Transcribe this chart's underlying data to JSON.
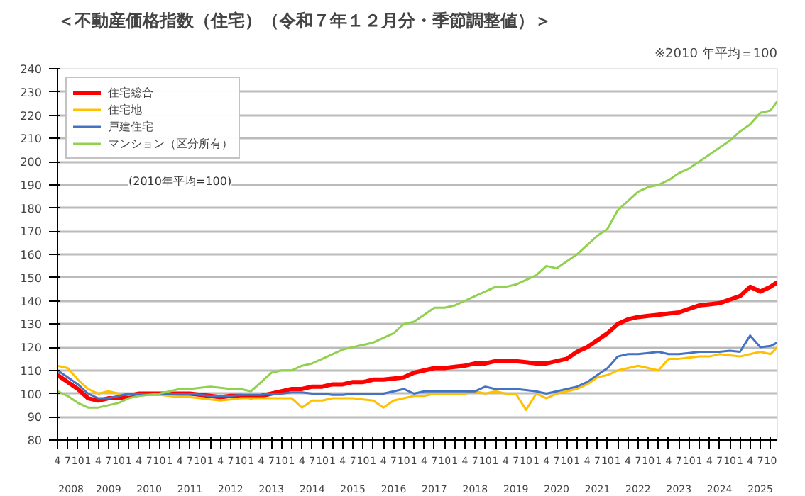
{
  "chart_data": {
    "type": "line",
    "title": "＜不動産価格指数（住宅）（令和７年１２月分・季節調整値）＞",
    "subtitle": "※2010 年平均＝100",
    "annotations": [
      "(2010年平均=100)"
    ],
    "x": [
      "2008-04",
      "2008-07",
      "2008-10",
      "2009-01",
      "2009-04",
      "2009-07",
      "2009-10",
      "2010-01",
      "2010-04",
      "2010-07",
      "2010-10",
      "2011-01",
      "2011-04",
      "2011-07",
      "2011-10",
      "2012-01",
      "2012-04",
      "2012-07",
      "2012-10",
      "2013-01",
      "2013-04",
      "2013-07",
      "2013-10",
      "2014-01",
      "2014-04",
      "2014-07",
      "2014-10",
      "2015-01",
      "2015-04",
      "2015-07",
      "2015-10",
      "2016-01",
      "2016-04",
      "2016-07",
      "2016-10",
      "2017-01",
      "2017-04",
      "2017-07",
      "2017-10",
      "2018-01",
      "2018-04",
      "2018-07",
      "2018-10",
      "2019-01",
      "2019-04",
      "2019-07",
      "2019-10",
      "2020-01",
      "2020-04",
      "2020-07",
      "2020-10",
      "2021-01",
      "2021-04",
      "2021-07",
      "2021-10",
      "2022-01",
      "2022-04",
      "2022-07",
      "2022-10",
      "2023-01",
      "2023-04",
      "2023-07",
      "2023-10",
      "2024-01",
      "2024-04",
      "2024-07",
      "2024-10",
      "2025-01",
      "2025-04",
      "2025-07",
      "2025-10",
      "2025-12"
    ],
    "series": [
      {
        "name": "住宅総合",
        "color": "#ff0000",
        "values": [
          108,
          105,
          102,
          98,
          97,
          98,
          98,
          99,
          100,
          100,
          100,
          100,
          100,
          100,
          99.5,
          99,
          98.5,
          99,
          99,
          98.5,
          99,
          100,
          101,
          102,
          102,
          103,
          103,
          104,
          104,
          105,
          105,
          106,
          106,
          106.5,
          107,
          109,
          110,
          111,
          111,
          111.5,
          112,
          113,
          113,
          114,
          114,
          114,
          113.5,
          113,
          113,
          114,
          115,
          118,
          120,
          123,
          126,
          130,
          132,
          133,
          133.5,
          134,
          134.5,
          135,
          136.5,
          138,
          138.5,
          139,
          140.5,
          142,
          146,
          144,
          146,
          148
        ]
      },
      {
        "name": "住宅地",
        "color": "#ffc000",
        "values": [
          112,
          111,
          106,
          102,
          100,
          101,
          100,
          99.5,
          100,
          99.5,
          99.5,
          99,
          98.5,
          98.5,
          98,
          97.5,
          97,
          97.5,
          98,
          98,
          98,
          98,
          98,
          98,
          94,
          97,
          97,
          98,
          98,
          98,
          97.5,
          97,
          94,
          97,
          98,
          99,
          99,
          100,
          100,
          100,
          100,
          101,
          100,
          101,
          100,
          100,
          93,
          100,
          98,
          100,
          101,
          102,
          104,
          107,
          108,
          110,
          111,
          112,
          111,
          110,
          115,
          115,
          115.5,
          116,
          116,
          117,
          116.5,
          116,
          117,
          118,
          117,
          120
        ]
      },
      {
        "name": "戸建住宅",
        "color": "#4472c4",
        "values": [
          110,
          107,
          104,
          100,
          98,
          98,
          99,
          100,
          100,
          100,
          100,
          100,
          100,
          100,
          99.5,
          99,
          99,
          99,
          99.5,
          99.5,
          99.5,
          100,
          100,
          100.5,
          100.5,
          100,
          100,
          99.5,
          99.5,
          100,
          100,
          100,
          100,
          101,
          102,
          100,
          101,
          101,
          101,
          101,
          101,
          101,
          103,
          102,
          102,
          102,
          101.5,
          101,
          100,
          101,
          102,
          103,
          105,
          108,
          111,
          116,
          117,
          117,
          117.5,
          118,
          117,
          117,
          117.5,
          118,
          118,
          118,
          118.5,
          118,
          125,
          120,
          120.5,
          122
        ]
      },
      {
        "name": "マンション（区分所有）",
        "color": "#92d050",
        "values": [
          101,
          99,
          96,
          94,
          94,
          95,
          96,
          98,
          99,
          99.5,
          100,
          101,
          102,
          102,
          102.5,
          103,
          102.5,
          102,
          102,
          101,
          105,
          109,
          110,
          110,
          112,
          113,
          115,
          117,
          119,
          120,
          121,
          122,
          124,
          126,
          130,
          131,
          134,
          137,
          137,
          138,
          140,
          142,
          144,
          146,
          146,
          147,
          149,
          151,
          155,
          154,
          157,
          160,
          164,
          168,
          171,
          179,
          183,
          187,
          189,
          190,
          192,
          195,
          197,
          200,
          203,
          206,
          209,
          213,
          216,
          221,
          222,
          226
        ]
      }
    ],
    "xlim": [
      "2008-04",
      "2025-12"
    ],
    "xticks": [
      {
        "value": "2008-04",
        "label": "4"
      },
      {
        "value": "2008-07",
        "label": "7"
      },
      {
        "value": "2008-10",
        "label": "10"
      },
      {
        "value": "2009-01",
        "label": "1"
      },
      {
        "value": "2009-04",
        "label": "4"
      },
      {
        "value": "2009-07",
        "label": "7"
      },
      {
        "value": "2009-10",
        "label": "10"
      },
      {
        "value": "2010-01",
        "label": "1"
      },
      {
        "value": "2010-04",
        "label": "4"
      },
      {
        "value": "2010-07",
        "label": "7"
      },
      {
        "value": "2010-10",
        "label": "10"
      },
      {
        "value": "2011-01",
        "label": "1"
      },
      {
        "value": "2011-04",
        "label": "4"
      },
      {
        "value": "2011-07",
        "label": "7"
      },
      {
        "value": "2011-10",
        "label": "10"
      },
      {
        "value": "2012-01",
        "label": "1"
      },
      {
        "value": "2012-04",
        "label": "4"
      },
      {
        "value": "2012-07",
        "label": "7"
      },
      {
        "value": "2012-10",
        "label": "10"
      },
      {
        "value": "2013-01",
        "label": "1"
      },
      {
        "value": "2013-04",
        "label": "4"
      },
      {
        "value": "2013-07",
        "label": "7"
      },
      {
        "value": "2013-10",
        "label": "10"
      },
      {
        "value": "2014-01",
        "label": "1"
      },
      {
        "value": "2014-04",
        "label": "4"
      },
      {
        "value": "2014-07",
        "label": "7"
      },
      {
        "value": "2014-10",
        "label": "10"
      },
      {
        "value": "2015-01",
        "label": "1"
      },
      {
        "value": "2015-04",
        "label": "4"
      },
      {
        "value": "2015-07",
        "label": "7"
      },
      {
        "value": "2015-10",
        "label": "10"
      },
      {
        "value": "2016-01",
        "label": "1"
      },
      {
        "value": "2016-04",
        "label": "4"
      },
      {
        "value": "2016-07",
        "label": "7"
      },
      {
        "value": "2016-10",
        "label": "10"
      },
      {
        "value": "2017-01",
        "label": "1"
      },
      {
        "value": "2017-04",
        "label": "4"
      },
      {
        "value": "2017-07",
        "label": "7"
      },
      {
        "value": "2017-10",
        "label": "10"
      },
      {
        "value": "2018-01",
        "label": "1"
      },
      {
        "value": "2018-04",
        "label": "4"
      },
      {
        "value": "2018-07",
        "label": "7"
      },
      {
        "value": "2018-10",
        "label": "10"
      },
      {
        "value": "2019-01",
        "label": "1"
      },
      {
        "value": "2019-04",
        "label": "4"
      },
      {
        "value": "2019-07",
        "label": "7"
      },
      {
        "value": "2019-10",
        "label": "10"
      },
      {
        "value": "2020-01",
        "label": "1"
      },
      {
        "value": "2020-04",
        "label": "4"
      },
      {
        "value": "2020-07",
        "label": "7"
      },
      {
        "value": "2020-10",
        "label": "10"
      },
      {
        "value": "2021-01",
        "label": "1"
      },
      {
        "value": "2021-04",
        "label": "4"
      },
      {
        "value": "2021-07",
        "label": "7"
      },
      {
        "value": "2021-10",
        "label": "10"
      },
      {
        "value": "2022-01",
        "label": "1"
      },
      {
        "value": "2022-04",
        "label": "4"
      },
      {
        "value": "2022-07",
        "label": "7"
      },
      {
        "value": "2022-10",
        "label": "10"
      },
      {
        "value": "2023-01",
        "label": "1"
      },
      {
        "value": "2023-04",
        "label": "4"
      },
      {
        "value": "2023-07",
        "label": "7"
      },
      {
        "value": "2023-10",
        "label": "10"
      },
      {
        "value": "2024-01",
        "label": "1"
      },
      {
        "value": "2024-04",
        "label": "4"
      },
      {
        "value": "2024-07",
        "label": "7"
      },
      {
        "value": "2024-10",
        "label": "10"
      },
      {
        "value": "2025-01",
        "label": "1"
      },
      {
        "value": "2025-04",
        "label": "4"
      },
      {
        "value": "2025-07",
        "label": "7"
      },
      {
        "value": "2025-10",
        "label": "10"
      }
    ],
    "x2ticks": [
      {
        "value": "2008-08",
        "label": "2008"
      },
      {
        "value": "2009-07",
        "label": "2009"
      },
      {
        "value": "2010-07",
        "label": "2010"
      },
      {
        "value": "2011-07",
        "label": "2011"
      },
      {
        "value": "2012-07",
        "label": "2012"
      },
      {
        "value": "2013-07",
        "label": "2013"
      },
      {
        "value": "2014-07",
        "label": "2014"
      },
      {
        "value": "2015-07",
        "label": "2015"
      },
      {
        "value": "2016-07",
        "label": "2016"
      },
      {
        "value": "2017-07",
        "label": "2017"
      },
      {
        "value": "2018-07",
        "label": "2018"
      },
      {
        "value": "2019-07",
        "label": "2019"
      },
      {
        "value": "2020-07",
        "label": "2020"
      },
      {
        "value": "2021-07",
        "label": "2021"
      },
      {
        "value": "2022-07",
        "label": "2022"
      },
      {
        "value": "2023-07",
        "label": "2023"
      },
      {
        "value": "2024-07",
        "label": "2024"
      },
      {
        "value": "2025-07",
        "label": "2025"
      }
    ],
    "x2lim": [
      "2008-04",
      "2025-12"
    ],
    "ylim": [
      80,
      240
    ],
    "yticks": [
      80,
      90,
      100,
      110,
      120,
      130,
      140,
      150,
      160,
      170,
      180,
      190,
      200,
      210,
      220,
      230,
      240
    ],
    "grid": "y",
    "legend": "top left",
    "marker": "none",
    "line_style": "solid"
  }
}
